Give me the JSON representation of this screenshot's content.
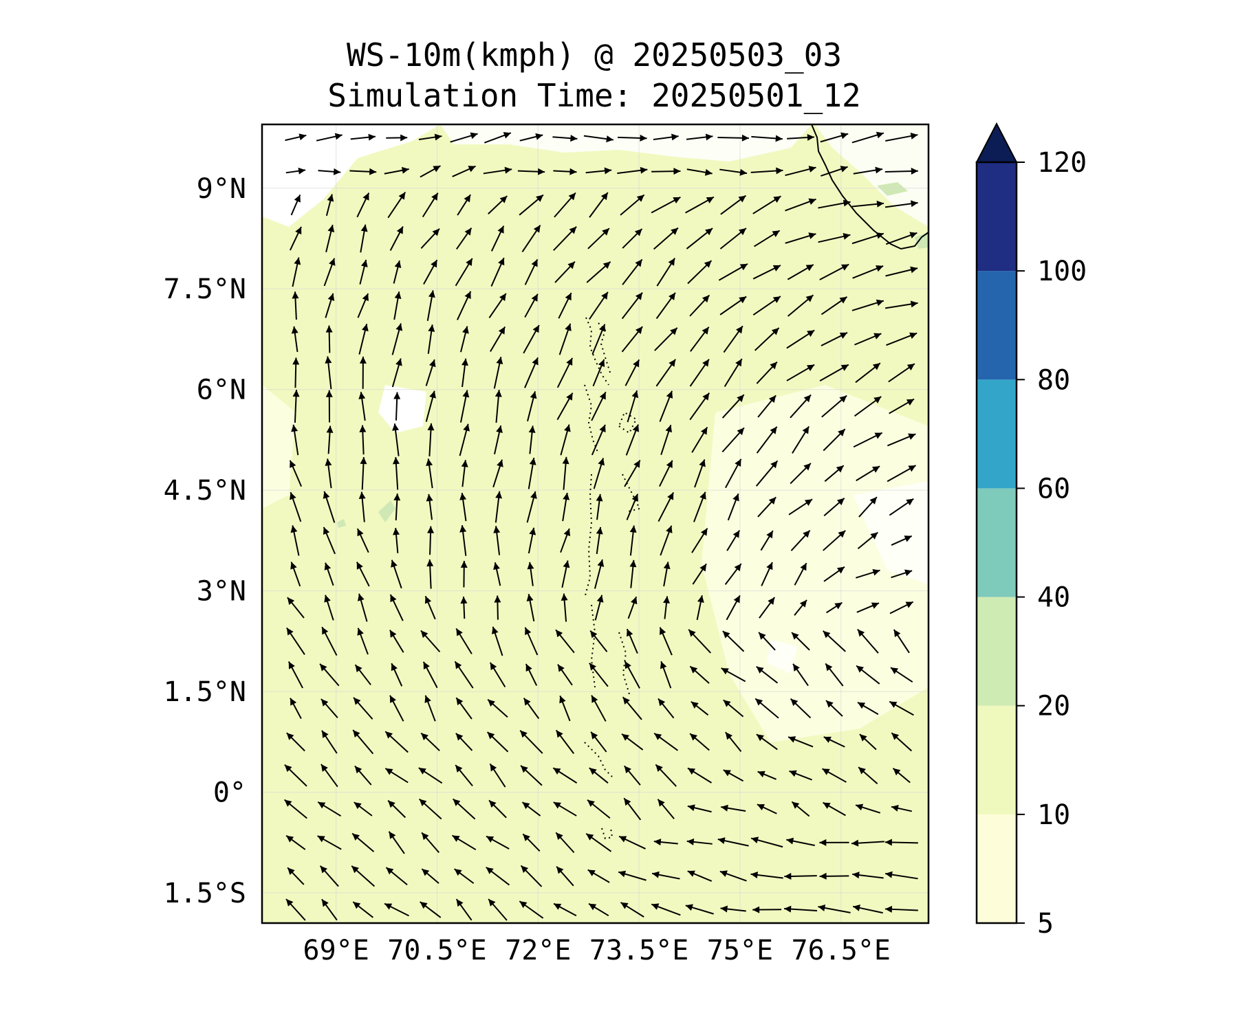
{
  "title": {
    "line1": "WS-10m(kmph) @ 20250503_03",
    "line2": "Simulation Time: 20250501_12"
  },
  "map": {
    "lon_range": [
      67.9,
      77.8
    ],
    "lat_range": [
      -1.95,
      9.95
    ],
    "lon_ticks": [
      {
        "value": 69.0,
        "label": "69°E"
      },
      {
        "value": 70.5,
        "label": "70.5°E"
      },
      {
        "value": 72.0,
        "label": "72°E"
      },
      {
        "value": 73.5,
        "label": "73.5°E"
      },
      {
        "value": 75.0,
        "label": "75°E"
      },
      {
        "value": 76.5,
        "label": "76.5°E"
      }
    ],
    "lat_ticks": [
      {
        "value": 9.0,
        "label": "9°N"
      },
      {
        "value": 7.5,
        "label": "7.5°N"
      },
      {
        "value": 6.0,
        "label": "6°N"
      },
      {
        "value": 4.5,
        "label": "4.5°N"
      },
      {
        "value": 3.0,
        "label": "3°N"
      },
      {
        "value": 1.5,
        "label": "1.5°N"
      },
      {
        "value": 0.0,
        "label": "0°"
      },
      {
        "value": -1.5,
        "label": "1.5°S"
      }
    ],
    "gridlines": true,
    "colors": {
      "background_fill": "#f1f9c0",
      "light_fill": "#fcfee0",
      "green_patch": "#cfe8b5",
      "coastline": "#000000",
      "arrow": "#000000"
    }
  },
  "colorbar": {
    "extend": "max",
    "levels": [
      5,
      10,
      20,
      40,
      60,
      80,
      100,
      120
    ],
    "tick_labels": [
      "5",
      "10",
      "20",
      "40",
      "60",
      "80",
      "100",
      "120"
    ],
    "colors": [
      "#fdfed9",
      "#eff8bd",
      "#cfebb4",
      "#7ecabb",
      "#32a5c9",
      "#2465ad",
      "#1f2d83"
    ],
    "extend_color": "#0c1d55"
  }
}
